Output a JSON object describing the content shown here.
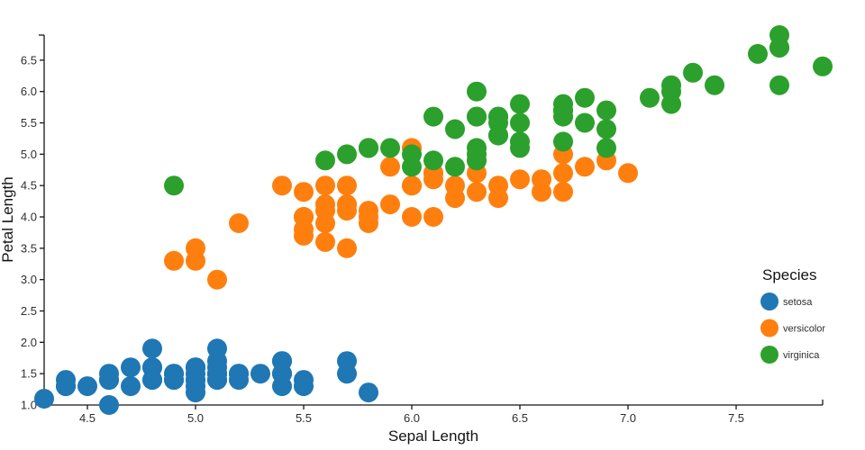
{
  "chart_data": {
    "type": "scatter",
    "title": "",
    "xlabel": "Sepal Length",
    "ylabel": "Petal Length",
    "xlim": [
      4.3,
      7.9
    ],
    "ylim": [
      1.0,
      6.9
    ],
    "xticks": [
      4.5,
      5.0,
      5.5,
      6.0,
      6.5,
      7.0,
      7.5
    ],
    "yticks": [
      1.0,
      1.5,
      2.0,
      2.5,
      3.0,
      3.5,
      4.0,
      4.5,
      5.0,
      5.5,
      6.0,
      6.5
    ],
    "grid": false,
    "background": "#ffffff",
    "marker_radius_px": 11,
    "legend": {
      "title": "Species",
      "position": "right",
      "entries": [
        {
          "label": "setosa",
          "color": "#1f77b4"
        },
        {
          "label": "versicolor",
          "color": "#ff7f0e"
        },
        {
          "label": "virginica",
          "color": "#2ca02c"
        }
      ]
    },
    "series": [
      {
        "name": "setosa",
        "color": "#1f77b4",
        "points": [
          [
            5.1,
            1.4
          ],
          [
            4.9,
            1.4
          ],
          [
            4.7,
            1.3
          ],
          [
            4.6,
            1.5
          ],
          [
            5.0,
            1.4
          ],
          [
            5.4,
            1.7
          ],
          [
            4.6,
            1.4
          ],
          [
            5.0,
            1.5
          ],
          [
            4.4,
            1.4
          ],
          [
            4.9,
            1.5
          ],
          [
            5.4,
            1.5
          ],
          [
            4.8,
            1.6
          ],
          [
            4.8,
            1.4
          ],
          [
            4.3,
            1.1
          ],
          [
            5.8,
            1.2
          ],
          [
            5.7,
            1.5
          ],
          [
            5.4,
            1.3
          ],
          [
            5.1,
            1.4
          ],
          [
            5.7,
            1.7
          ],
          [
            5.1,
            1.5
          ],
          [
            5.4,
            1.7
          ],
          [
            5.1,
            1.5
          ],
          [
            4.6,
            1.0
          ],
          [
            5.1,
            1.7
          ],
          [
            4.8,
            1.9
          ],
          [
            5.0,
            1.6
          ],
          [
            5.0,
            1.6
          ],
          [
            5.2,
            1.5
          ],
          [
            5.2,
            1.4
          ],
          [
            4.7,
            1.6
          ],
          [
            4.8,
            1.6
          ],
          [
            5.4,
            1.5
          ],
          [
            5.2,
            1.5
          ],
          [
            5.5,
            1.4
          ],
          [
            4.9,
            1.5
          ],
          [
            5.0,
            1.2
          ],
          [
            5.5,
            1.3
          ],
          [
            4.9,
            1.4
          ],
          [
            4.4,
            1.3
          ],
          [
            5.1,
            1.5
          ],
          [
            5.0,
            1.3
          ],
          [
            4.5,
            1.3
          ],
          [
            4.4,
            1.3
          ],
          [
            5.0,
            1.6
          ],
          [
            5.1,
            1.9
          ],
          [
            4.8,
            1.4
          ],
          [
            5.1,
            1.6
          ],
          [
            4.6,
            1.4
          ],
          [
            5.3,
            1.5
          ],
          [
            5.0,
            1.4
          ]
        ]
      },
      {
        "name": "versicolor",
        "color": "#ff7f0e",
        "points": [
          [
            7.0,
            4.7
          ],
          [
            6.4,
            4.5
          ],
          [
            6.9,
            4.9
          ],
          [
            5.5,
            4.0
          ],
          [
            6.5,
            4.6
          ],
          [
            5.7,
            4.5
          ],
          [
            6.3,
            4.7
          ],
          [
            4.9,
            3.3
          ],
          [
            6.6,
            4.6
          ],
          [
            5.2,
            3.9
          ],
          [
            5.0,
            3.5
          ],
          [
            5.9,
            4.2
          ],
          [
            6.0,
            4.0
          ],
          [
            6.1,
            4.7
          ],
          [
            5.6,
            3.6
          ],
          [
            6.7,
            4.4
          ],
          [
            5.6,
            4.5
          ],
          [
            5.8,
            4.1
          ],
          [
            6.2,
            4.5
          ],
          [
            5.6,
            3.9
          ],
          [
            5.9,
            4.8
          ],
          [
            6.1,
            4.0
          ],
          [
            6.3,
            4.9
          ],
          [
            6.1,
            4.7
          ],
          [
            6.4,
            4.3
          ],
          [
            6.6,
            4.4
          ],
          [
            6.8,
            4.8
          ],
          [
            6.7,
            5.0
          ],
          [
            6.0,
            4.5
          ],
          [
            5.7,
            3.5
          ],
          [
            5.5,
            3.8
          ],
          [
            5.5,
            3.7
          ],
          [
            5.8,
            3.9
          ],
          [
            6.0,
            5.1
          ],
          [
            5.4,
            4.5
          ],
          [
            6.0,
            4.5
          ],
          [
            6.7,
            4.7
          ],
          [
            6.3,
            4.4
          ],
          [
            5.6,
            4.1
          ],
          [
            5.5,
            4.0
          ],
          [
            5.5,
            4.4
          ],
          [
            6.1,
            4.6
          ],
          [
            5.8,
            4.0
          ],
          [
            5.0,
            3.3
          ],
          [
            5.6,
            4.2
          ],
          [
            5.7,
            4.2
          ],
          [
            5.7,
            4.2
          ],
          [
            6.2,
            4.3
          ],
          [
            5.1,
            3.0
          ],
          [
            5.7,
            4.1
          ]
        ]
      },
      {
        "name": "virginica",
        "color": "#2ca02c",
        "points": [
          [
            6.3,
            6.0
          ],
          [
            5.8,
            5.1
          ],
          [
            7.1,
            5.9
          ],
          [
            6.3,
            5.6
          ],
          [
            6.5,
            5.8
          ],
          [
            7.6,
            6.6
          ],
          [
            4.9,
            4.5
          ],
          [
            7.3,
            6.3
          ],
          [
            6.7,
            5.8
          ],
          [
            7.2,
            6.1
          ],
          [
            6.5,
            5.1
          ],
          [
            6.4,
            5.3
          ],
          [
            6.8,
            5.5
          ],
          [
            5.7,
            5.0
          ],
          [
            5.8,
            5.1
          ],
          [
            6.4,
            5.3
          ],
          [
            6.5,
            5.5
          ],
          [
            7.7,
            6.7
          ],
          [
            7.7,
            6.9
          ],
          [
            6.0,
            5.0
          ],
          [
            6.9,
            5.7
          ],
          [
            5.6,
            4.9
          ],
          [
            7.7,
            6.7
          ],
          [
            6.3,
            4.9
          ],
          [
            6.7,
            5.7
          ],
          [
            7.2,
            6.0
          ],
          [
            6.2,
            4.8
          ],
          [
            6.1,
            4.9
          ],
          [
            6.4,
            5.6
          ],
          [
            7.2,
            5.8
          ],
          [
            7.4,
            6.1
          ],
          [
            7.9,
            6.4
          ],
          [
            6.4,
            5.6
          ],
          [
            6.3,
            5.1
          ],
          [
            6.1,
            5.6
          ],
          [
            7.7,
            6.1
          ],
          [
            6.3,
            5.6
          ],
          [
            6.4,
            5.5
          ],
          [
            6.0,
            4.8
          ],
          [
            6.9,
            5.4
          ],
          [
            6.7,
            5.6
          ],
          [
            6.9,
            5.1
          ],
          [
            5.8,
            5.1
          ],
          [
            6.8,
            5.9
          ],
          [
            6.7,
            5.7
          ],
          [
            6.7,
            5.2
          ],
          [
            6.3,
            5.0
          ],
          [
            6.5,
            5.2
          ],
          [
            6.2,
            5.4
          ],
          [
            5.9,
            5.1
          ]
        ]
      }
    ]
  }
}
